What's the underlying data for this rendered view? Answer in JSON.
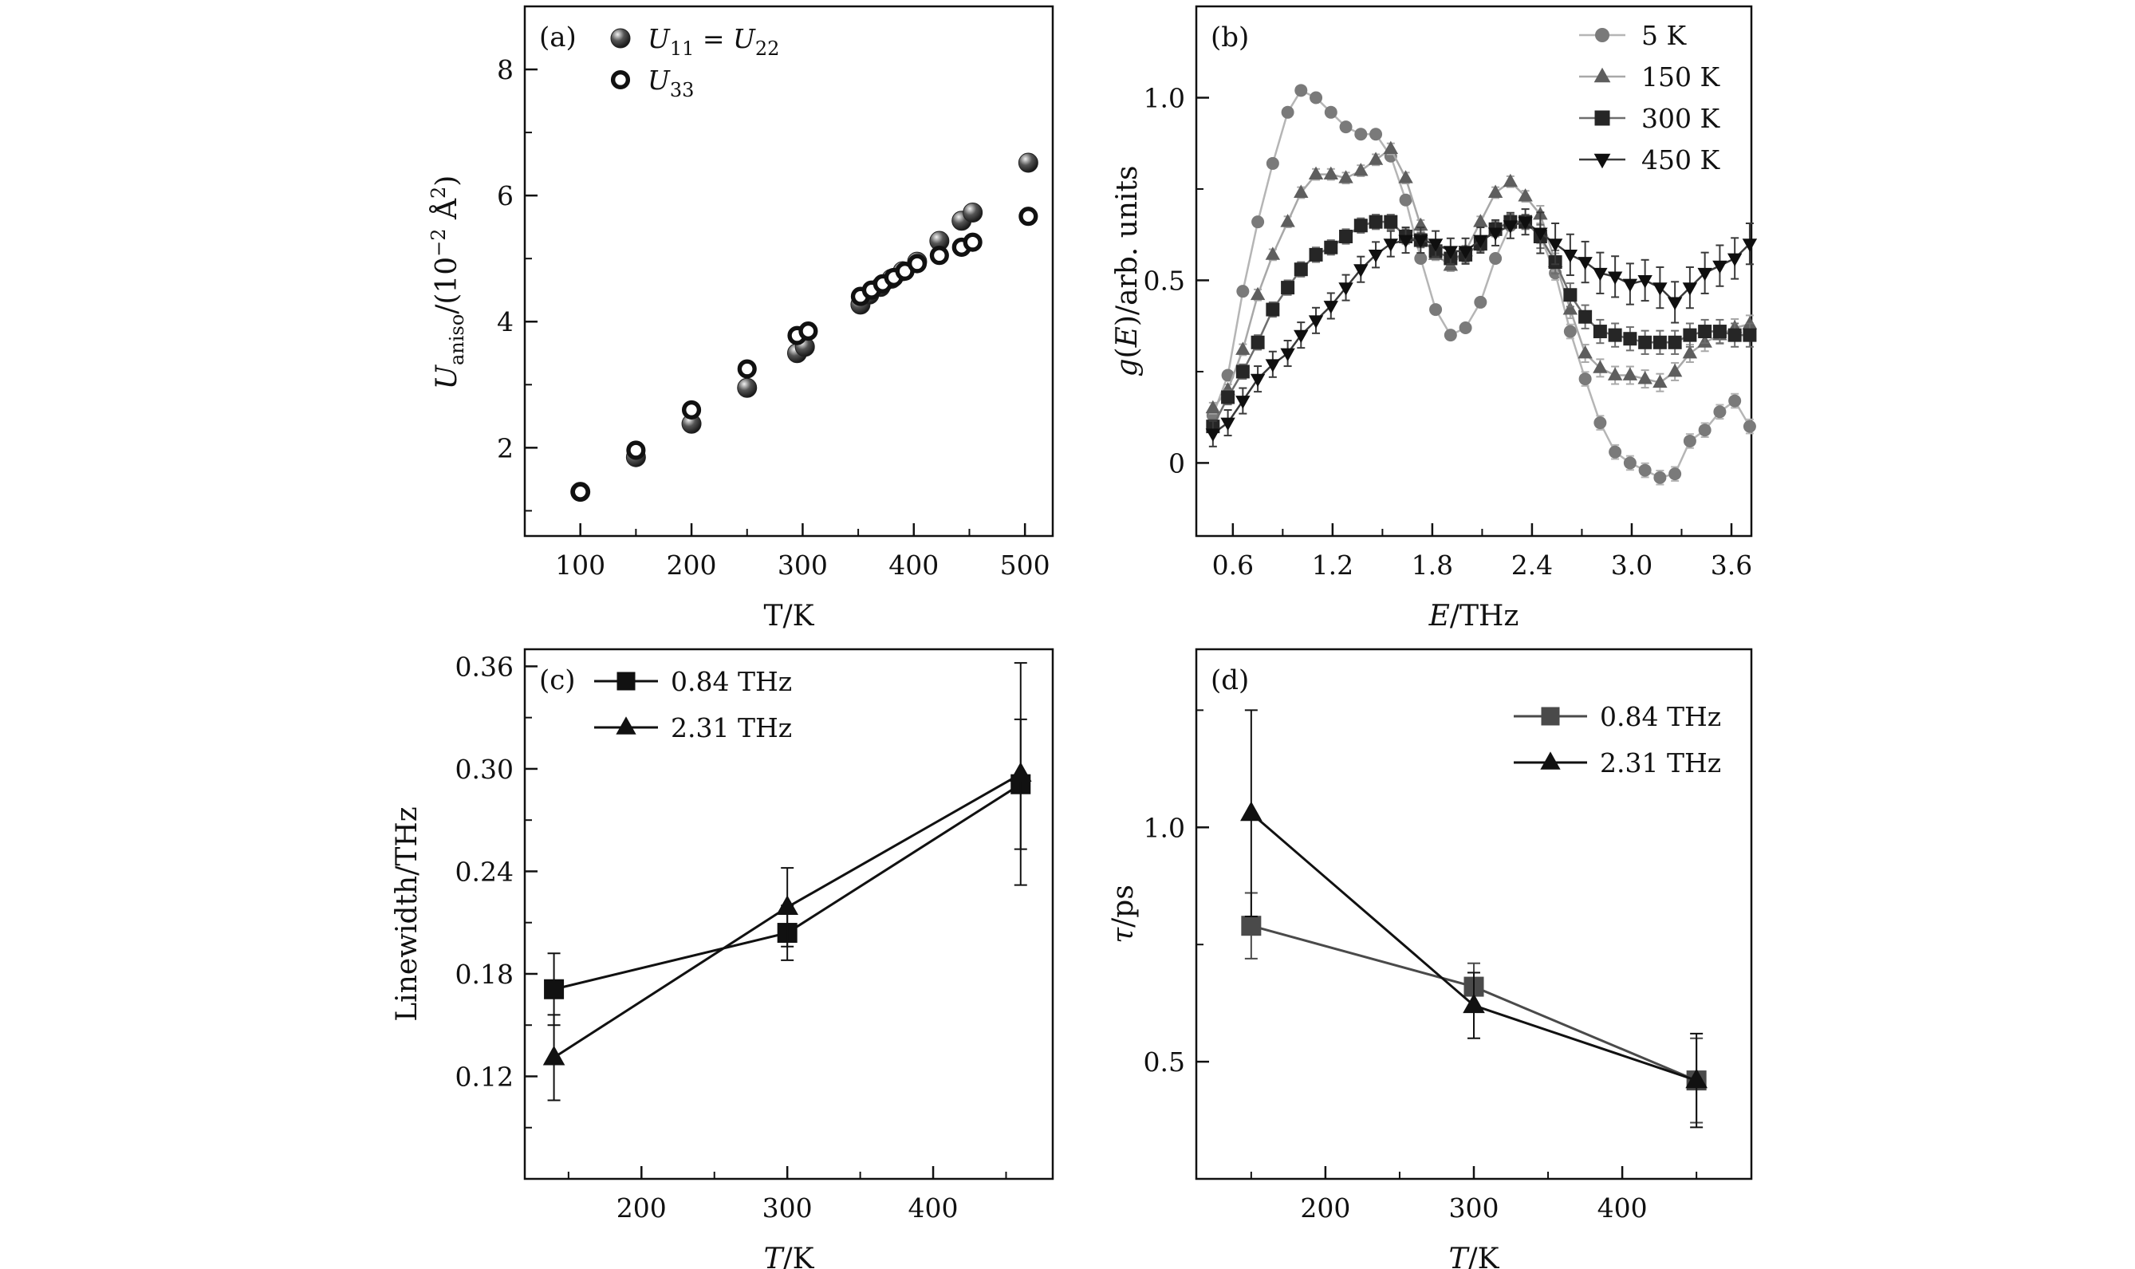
{
  "figure": {
    "background": "#ffffff",
    "ink": "#111111"
  },
  "chart_data": [
    {
      "id": "a",
      "type": "scatter",
      "panel_tag": "(a)",
      "xlabel": "T/K",
      "ylabel": "U_aniso/(10^-2 Å^2)",
      "ylabel_parts": {
        "base": "U",
        "sub": "aniso",
        "mid": "/(10",
        "sup": "−2",
        "tail": " Å",
        "sup2": "2",
        "end": ")"
      },
      "xlim": [
        50,
        525
      ],
      "ylim": [
        0.6,
        9.0
      ],
      "xticks": [
        100,
        200,
        300,
        400,
        500
      ],
      "yticks": [
        2,
        4,
        6,
        8
      ],
      "legend": [
        {
          "parts": [
            "U",
            "11",
            " = U",
            "22"
          ],
          "marker": "filled-circle"
        },
        {
          "parts": [
            "U",
            "33"
          ],
          "marker": "open-circle"
        }
      ],
      "series": [
        {
          "name": "U11 = U22",
          "marker": "filled-circle",
          "x": [
            100,
            150,
            200,
            250,
            295,
            302,
            352,
            360,
            370,
            380,
            390,
            403,
            423,
            443,
            453,
            503
          ],
          "y": [
            1.3,
            1.85,
            2.38,
            2.95,
            3.5,
            3.6,
            4.27,
            4.43,
            4.55,
            4.68,
            4.8,
            4.95,
            5.28,
            5.6,
            5.73,
            6.52
          ]
        },
        {
          "name": "U33",
          "marker": "open-circle",
          "x": [
            100,
            150,
            200,
            250,
            295,
            305,
            352,
            362,
            372,
            382,
            392,
            403,
            423,
            443,
            453,
            503
          ],
          "y": [
            1.3,
            1.96,
            2.6,
            3.25,
            3.78,
            3.85,
            4.4,
            4.5,
            4.6,
            4.7,
            4.8,
            4.92,
            5.05,
            5.18,
            5.26,
            5.67
          ]
        }
      ]
    },
    {
      "id": "b",
      "type": "line",
      "panel_tag": "(b)",
      "xlabel": "E/THz",
      "ylabel": "g(E)/arb. units",
      "xlim": [
        0.38,
        3.72
      ],
      "ylim": [
        -0.2,
        1.25
      ],
      "xticks": [
        0.6,
        1.2,
        1.8,
        2.4,
        3.0,
        3.6
      ],
      "yticks": [
        0,
        0.5,
        1.0
      ],
      "legend_position": "top-right",
      "x": [
        0.48,
        0.57,
        0.66,
        0.75,
        0.84,
        0.93,
        1.01,
        1.1,
        1.19,
        1.28,
        1.37,
        1.46,
        1.55,
        1.64,
        1.73,
        1.82,
        1.91,
        2.0,
        2.09,
        2.18,
        2.27,
        2.36,
        2.45,
        2.54,
        2.63,
        2.72,
        2.81,
        2.9,
        2.99,
        3.08,
        3.17,
        3.26,
        3.35,
        3.44,
        3.53,
        3.62,
        3.71
      ],
      "series": [
        {
          "name": "5 K",
          "marker": "circle",
          "color": "#7a7a7a",
          "line_color": "#b5b5b5",
          "values": [
            0.13,
            0.24,
            0.47,
            0.66,
            0.82,
            0.96,
            1.02,
            1.0,
            0.96,
            0.92,
            0.9,
            0.9,
            0.84,
            0.72,
            0.56,
            0.42,
            0.35,
            0.37,
            0.44,
            0.56,
            0.65,
            0.66,
            0.62,
            0.52,
            0.36,
            0.23,
            0.11,
            0.03,
            0.0,
            -0.02,
            -0.04,
            -0.03,
            0.06,
            0.09,
            0.14,
            0.17,
            0.1
          ]
        },
        {
          "name": "150 K",
          "marker": "triangle-up",
          "color": "#5e5e5e",
          "line_color": "#a8a8a8",
          "values": [
            0.15,
            0.2,
            0.31,
            0.46,
            0.57,
            0.66,
            0.74,
            0.79,
            0.79,
            0.78,
            0.8,
            0.83,
            0.86,
            0.78,
            0.65,
            0.57,
            0.54,
            0.58,
            0.66,
            0.74,
            0.77,
            0.73,
            0.68,
            0.55,
            0.42,
            0.3,
            0.26,
            0.24,
            0.24,
            0.23,
            0.22,
            0.25,
            0.3,
            0.33,
            0.35,
            0.37,
            0.38
          ]
        },
        {
          "name": "300 K",
          "marker": "square",
          "color": "#262626",
          "line_color": "#6e6e6e",
          "values": [
            0.1,
            0.18,
            0.25,
            0.33,
            0.42,
            0.48,
            0.53,
            0.57,
            0.59,
            0.62,
            0.65,
            0.66,
            0.66,
            0.62,
            0.61,
            0.58,
            0.56,
            0.57,
            0.6,
            0.64,
            0.66,
            0.66,
            0.62,
            0.55,
            0.46,
            0.4,
            0.36,
            0.35,
            0.34,
            0.33,
            0.33,
            0.33,
            0.35,
            0.36,
            0.36,
            0.35,
            0.35
          ]
        },
        {
          "name": "450 K",
          "marker": "triangle-down",
          "color": "#0f0f0f",
          "line_color": "#3a3a3a",
          "values": [
            0.08,
            0.11,
            0.17,
            0.23,
            0.27,
            0.3,
            0.35,
            0.39,
            0.43,
            0.48,
            0.53,
            0.57,
            0.6,
            0.61,
            0.61,
            0.6,
            0.58,
            0.58,
            0.61,
            0.63,
            0.65,
            0.66,
            0.63,
            0.6,
            0.57,
            0.55,
            0.52,
            0.51,
            0.49,
            0.5,
            0.48,
            0.44,
            0.48,
            0.52,
            0.54,
            0.56,
            0.6
          ]
        }
      ]
    },
    {
      "id": "c",
      "type": "line",
      "panel_tag": "(c)",
      "xlabel": "T/K",
      "ylabel": "Linewidth/THz",
      "xlim": [
        120,
        482
      ],
      "ylim": [
        0.06,
        0.37
      ],
      "xticks": [
        200,
        300,
        400
      ],
      "yticks": [
        0.12,
        0.18,
        0.24,
        0.3,
        0.36
      ],
      "legend_position": "top-left",
      "series": [
        {
          "name": "0.84 THz",
          "marker": "square",
          "color": "#111111",
          "x": [
            140,
            300,
            460
          ],
          "y": [
            0.171,
            0.204,
            0.291
          ],
          "err": [
            0.021,
            0.016,
            0.038
          ]
        },
        {
          "name": "2.31 THz",
          "marker": "triangle-up",
          "color": "#111111",
          "x": [
            140,
            300,
            460
          ],
          "y": [
            0.131,
            0.219,
            0.297
          ],
          "err": [
            0.025,
            0.023,
            0.065
          ]
        }
      ]
    },
    {
      "id": "d",
      "type": "line",
      "panel_tag": "(d)",
      "xlabel": "T/K",
      "ylabel": "τ/ps",
      "xlim": [
        113,
        487
      ],
      "ylim": [
        0.25,
        1.38
      ],
      "xticks": [
        200,
        300,
        400
      ],
      "yticks": [
        0.5,
        1.0
      ],
      "legend_position": "top-right",
      "series": [
        {
          "name": "0.84 THz",
          "marker": "square",
          "color": "#4a4a4a",
          "x": [
            150,
            300,
            450
          ],
          "y": [
            0.79,
            0.66,
            0.46
          ],
          "err": [
            0.07,
            0.05,
            0.09
          ]
        },
        {
          "name": "2.31 THz",
          "marker": "triangle-up",
          "color": "#111111",
          "x": [
            150,
            300,
            450
          ],
          "y": [
            1.03,
            0.62,
            0.46
          ],
          "err": [
            0.22,
            0.07,
            0.1
          ]
        }
      ]
    }
  ]
}
